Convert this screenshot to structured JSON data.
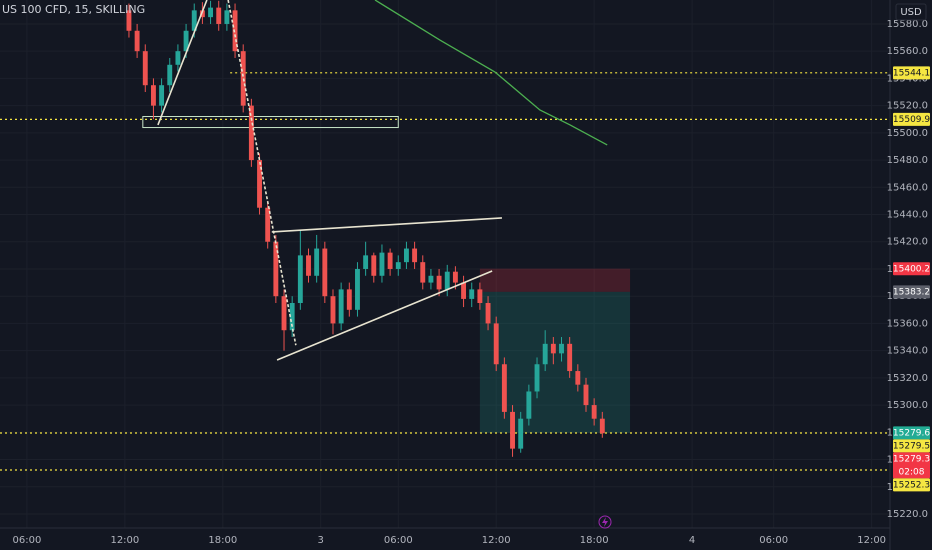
{
  "chart_data": {
    "type": "candlestick",
    "title": "US 100 CFD, 15, SKILLING",
    "currency": "USD",
    "up_color": "#26a69a",
    "down_color": "#ef5350",
    "x": [
      25,
      27,
      29,
      31,
      33,
      35,
      37,
      39,
      41,
      43,
      45,
      47,
      49,
      51,
      53,
      55,
      57,
      59,
      61,
      63,
      65,
      67,
      69,
      71,
      73,
      75,
      77,
      79,
      81,
      83,
      85,
      87,
      89,
      91,
      93,
      95,
      97,
      99,
      101,
      103,
      105,
      107,
      109,
      111,
      113,
      115,
      117,
      119,
      121,
      123,
      125,
      127,
      129,
      131,
      133,
      135,
      137,
      139,
      141
    ],
    "open": [
      15590,
      15575,
      15560,
      15535,
      15520,
      15535,
      15550,
      15560,
      15575,
      15590,
      15585,
      15592,
      15580,
      15590,
      15560,
      15520,
      15480,
      15445,
      15420,
      15380,
      15355,
      15375,
      15410,
      15395,
      15415,
      15380,
      15360,
      15385,
      15370,
      15400,
      15410,
      15395,
      15412,
      15400,
      15405,
      15415,
      15405,
      15390,
      15395,
      15385,
      15398,
      15390,
      15378,
      15385,
      15375,
      15360,
      15330,
      15295,
      15268,
      15290,
      15310,
      15330,
      15345,
      15338,
      15345,
      15325,
      15315,
      15300,
      15290
    ],
    "high": [
      15595,
      15580,
      15565,
      15540,
      15540,
      15555,
      15565,
      15580,
      15595,
      15596,
      15597,
      15597,
      15595,
      15595,
      15565,
      15525,
      15485,
      15450,
      15425,
      15385,
      15380,
      15428,
      15415,
      15425,
      15420,
      15385,
      15390,
      15390,
      15405,
      15420,
      15412,
      15418,
      15415,
      15410,
      15420,
      15420,
      15410,
      15400,
      15400,
      15403,
      15402,
      15395,
      15390,
      15390,
      15380,
      15365,
      15335,
      15300,
      15295,
      15315,
      15335,
      15355,
      15350,
      15350,
      15350,
      15330,
      15320,
      15305,
      15295
    ],
    "low": [
      15570,
      15555,
      15530,
      15510,
      15515,
      15530,
      15545,
      15555,
      15570,
      15580,
      15580,
      15575,
      15575,
      15555,
      15515,
      15475,
      15440,
      15415,
      15375,
      15340,
      15350,
      15370,
      15390,
      15390,
      15375,
      15352,
      15355,
      15365,
      15365,
      15395,
      15390,
      15390,
      15395,
      15395,
      15400,
      15400,
      15385,
      15385,
      15380,
      15380,
      15385,
      15372,
      15372,
      15370,
      15355,
      15325,
      15290,
      15262,
      15265,
      15285,
      15305,
      15325,
      15330,
      15332,
      15320,
      15310,
      15295,
      15285,
      15276
    ],
    "close": [
      15575,
      15560,
      15535,
      15520,
      15535,
      15550,
      15560,
      15575,
      15590,
      15585,
      15592,
      15580,
      15590,
      15560,
      15520,
      15480,
      15445,
      15420,
      15380,
      15355,
      15375,
      15410,
      15395,
      15415,
      15380,
      15360,
      15385,
      15370,
      15400,
      15410,
      15395,
      15412,
      15400,
      15405,
      15415,
      15405,
      15390,
      15395,
      15385,
      15398,
      15390,
      15378,
      15385,
      15375,
      15360,
      15330,
      15295,
      15268,
      15290,
      15310,
      15330,
      15345,
      15338,
      15345,
      15325,
      15315,
      15300,
      15290,
      15279.3
    ],
    "xlim": [
      -6.6,
      211.5
    ],
    "ylim": [
      15209.7,
      15597.6
    ],
    "xticks": [
      {
        "value": 0,
        "label": "06:00"
      },
      {
        "value": 24,
        "label": "12:00"
      },
      {
        "value": 48,
        "label": "18:00"
      },
      {
        "value": 72,
        "label": "3"
      },
      {
        "value": 91,
        "label": "06:00"
      },
      {
        "value": 115,
        "label": "12:00"
      },
      {
        "value": 139,
        "label": "18:00"
      },
      {
        "value": 163,
        "label": "4"
      },
      {
        "value": 183,
        "label": "06:00"
      },
      {
        "value": 207,
        "label": "12:00"
      }
    ],
    "yticks": [
      {
        "value": 15580,
        "label": "15580.0"
      },
      {
        "value": 15560,
        "label": "15560.0"
      },
      {
        "value": 15540,
        "label": "15540.0"
      },
      {
        "value": 15520,
        "label": "15520.0"
      },
      {
        "value": 15500,
        "label": "15500.0"
      },
      {
        "value": 15480,
        "label": "15480.0"
      },
      {
        "value": 15460,
        "label": "15460.0"
      },
      {
        "value": 15440,
        "label": "15440.0"
      },
      {
        "value": 15420,
        "label": "15420.0"
      },
      {
        "value": 15400,
        "label": "15400.0"
      },
      {
        "value": 15380,
        "label": "15380.0"
      },
      {
        "value": 15360,
        "label": "15360.0"
      },
      {
        "value": 15340,
        "label": "15340.0"
      },
      {
        "value": 15320,
        "label": "15320.0"
      },
      {
        "value": 15300,
        "label": "15300.0"
      },
      {
        "value": 15280,
        "label": "15280.0"
      },
      {
        "value": 15260,
        "label": "15260.0"
      },
      {
        "value": 15240,
        "label": "15240.0"
      },
      {
        "value": 15220,
        "label": "15220.0"
      }
    ],
    "levels": [
      {
        "value": 15544.1,
        "start": 49.8
      },
      {
        "value": 15509.9,
        "start": -6.6
      },
      {
        "value": 15279.5,
        "start": -6.6
      },
      {
        "value": 15252.3,
        "start": -6.6
      }
    ],
    "level_color": "#f5e642",
    "price_tags": [
      {
        "value": 15544.1,
        "color": "#f5e642"
      },
      {
        "value": 15509.9,
        "color": "#f5e642"
      },
      {
        "value": 15400.2,
        "color": "#f23645"
      },
      {
        "value": 15383.2,
        "color": "#5d606b"
      },
      {
        "value": 15279.6,
        "color": "#22ab94"
      },
      {
        "value": 15279.5,
        "color": "#f5e642"
      },
      {
        "value": 15279.3,
        "color": "#f23645",
        "countdown": "02:08"
      },
      {
        "value": 15252.3,
        "color": "#f5e642"
      }
    ],
    "zones": [
      {
        "x": [
          111,
          147.8
        ],
        "y": [
          15383.2,
          15400.2
        ],
        "fill": "rgba(242,54,69,0.22)",
        "stroke": "none"
      },
      {
        "x": [
          111,
          147.8
        ],
        "y": [
          15279.6,
          15383.2
        ],
        "fill": "rgba(34,171,148,0.2)",
        "stroke": "none"
      },
      {
        "x": [
          28.4,
          91
        ],
        "y": [
          15503.9,
          15512
        ],
        "fill": "none",
        "stroke": "#c8e6c9"
      }
    ],
    "trendlines": [
      {
        "x": [
          32.1,
          44.1
        ],
        "y": [
          15505.8,
          15597.6
        ],
        "dashed": false
      },
      {
        "x": [
          49.3,
          65.9
        ],
        "y": [
          15597.6,
          15344
        ],
        "dashed": true
      },
      {
        "x": [
          60,
          116.4
        ],
        "y": [
          15427.2,
          15437.5
        ],
        "dashed": false
      },
      {
        "x": [
          61.3,
          114
        ],
        "y": [
          15333.1,
          15398.5
        ],
        "dashed": false
      }
    ],
    "trend_color": "#e8e4d0",
    "ma": {
      "color": "#4caf50",
      "x": [
        85.3,
        101.2,
        114.7,
        125.7,
        133.1,
        142.2
      ],
      "values": [
        15597.6,
        15568.2,
        15544.7,
        15516.8,
        15505.8,
        15491.1
      ]
    }
  }
}
